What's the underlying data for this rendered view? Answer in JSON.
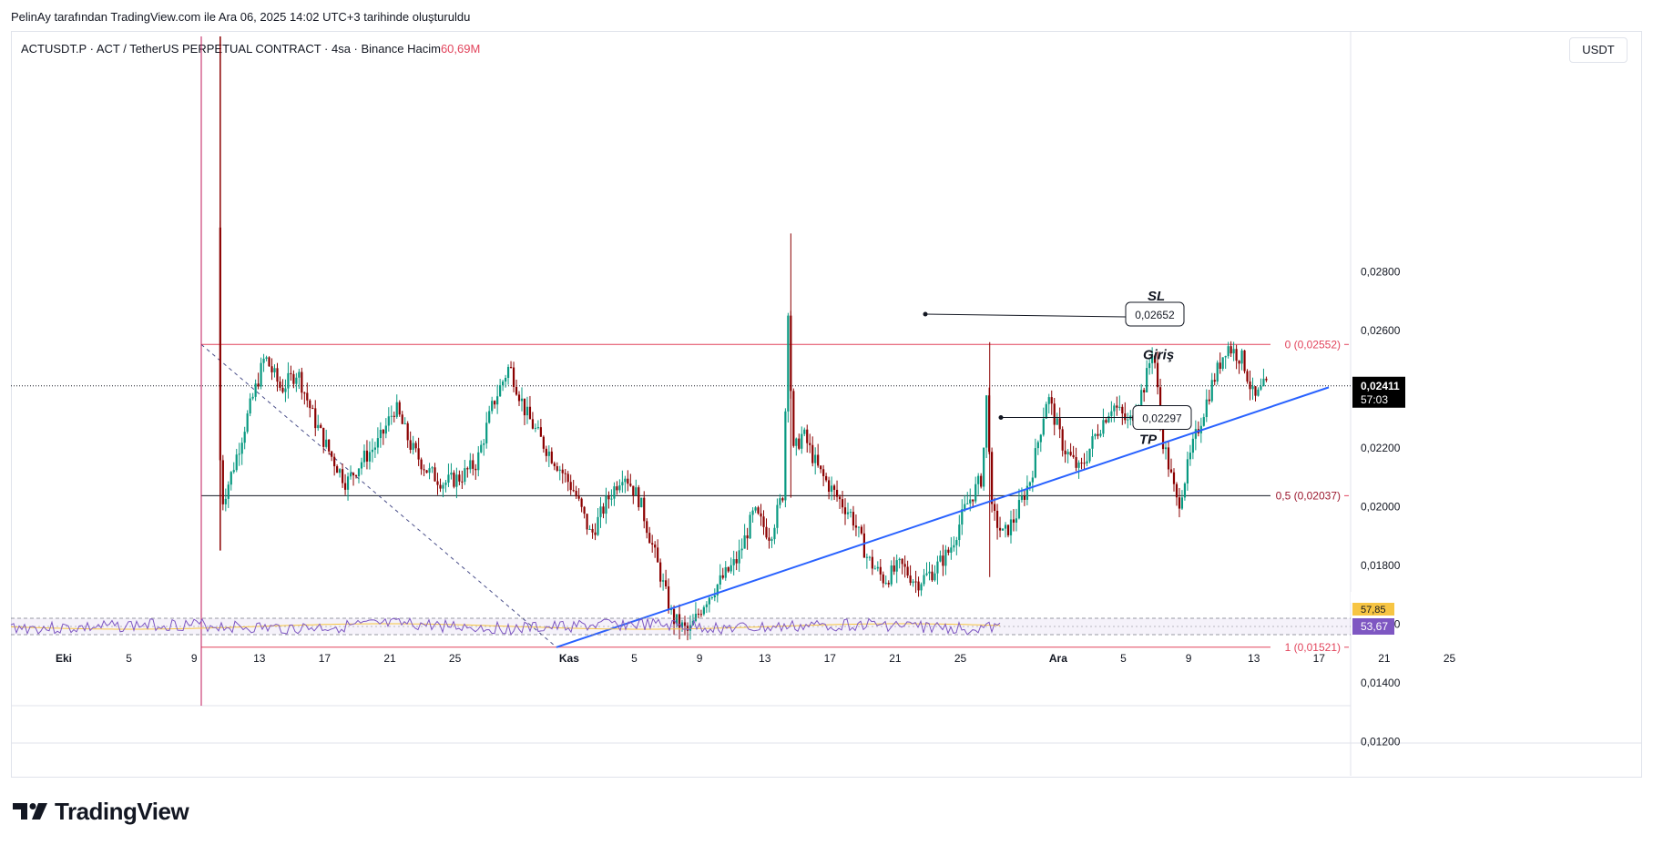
{
  "attribution": "PelinAy tarafından TradingView.com ile Ara 06, 2025 14:02 UTC+3 tarihinde oluşturuldu",
  "header": {
    "symbol": "ACTUSDT.P · ACT / TetherUS PERPETUAL CONTRACT · 4sa · Binance",
    "volume_label": "Hacim",
    "volume_value": "60,69M"
  },
  "currency_badge": "USDT",
  "brand": "TradingView",
  "colors": {
    "up": "#089981",
    "down": "#8b0000",
    "fib": "#e2445c",
    "trendline": "#2962ff",
    "current_price_bg": "#000000",
    "rsi_line": "#7e57c2",
    "rsi_ma": "#f7c543",
    "rsi_badge": "#7e57c2"
  },
  "annotations": {
    "sl_label": "SL",
    "sl_price": "0,02652",
    "tp_label": "TP",
    "tp_price": "0,02297",
    "entry_label": "Giriş"
  },
  "current_price": {
    "value": "0,02411",
    "countdown": "57:03"
  },
  "rsi": {
    "value": "53,67",
    "partial": "57,85"
  },
  "chart_data": {
    "type": "candlestick",
    "title": "ACTUSDT.P · ACT / TetherUS PERPETUAL CONTRACT · 4sa · Binance",
    "ylim": [
      0.0105,
      0.0302
    ],
    "y_ticks": [
      "0,02800",
      "0,02600",
      "0,02400",
      "0,02200",
      "0,02000",
      "0,01800",
      "0,01600",
      "0,01400",
      "0,01200"
    ],
    "y_tick_values": [
      0.028,
      0.026,
      0.024,
      0.022,
      0.02,
      0.018,
      0.016,
      0.014,
      0.012
    ],
    "x_ticks": [
      "Eki",
      "5",
      "9",
      "13",
      "17",
      "21",
      "25",
      "Kas",
      "5",
      "9",
      "13",
      "17",
      "21",
      "25",
      "Ara",
      "5",
      "9",
      "13",
      "17",
      "21",
      "25"
    ],
    "x_tick_days": [
      1,
      5,
      9,
      13,
      17,
      21,
      25,
      32,
      36,
      40,
      44,
      48,
      52,
      56,
      62,
      66,
      70,
      74,
      78,
      82,
      86
    ],
    "x_tick_bold": [
      true,
      false,
      false,
      false,
      false,
      false,
      false,
      true,
      false,
      false,
      false,
      false,
      false,
      false,
      true,
      false,
      false,
      false,
      false,
      false,
      false
    ],
    "fib_levels": [
      {
        "label": "0 (0,02552)",
        "value": 0.02552
      },
      {
        "label": "0,5 (0,02037)",
        "value": 0.02037
      },
      {
        "label": "1 (0,01521)",
        "value": 0.01521
      }
    ],
    "price_anchors_day": [
      [
        10.6,
        0.0295
      ],
      [
        10.8,
        0.02
      ],
      [
        11.5,
        0.0212
      ],
      [
        12.5,
        0.0232
      ],
      [
        13.5,
        0.0251
      ],
      [
        14.5,
        0.024
      ],
      [
        15.5,
        0.0246
      ],
      [
        16.5,
        0.023
      ],
      [
        17.5,
        0.0218
      ],
      [
        18.5,
        0.0208
      ],
      [
        19.5,
        0.0216
      ],
      [
        20.5,
        0.0222
      ],
      [
        21.5,
        0.0234
      ],
      [
        22.5,
        0.022
      ],
      [
        23.5,
        0.0212
      ],
      [
        24.5,
        0.0208
      ],
      [
        25.5,
        0.021
      ],
      [
        26.5,
        0.0215
      ],
      [
        27.5,
        0.0235
      ],
      [
        28.5,
        0.0248
      ],
      [
        29.5,
        0.0232
      ],
      [
        30.5,
        0.0222
      ],
      [
        31.5,
        0.0214
      ],
      [
        32.5,
        0.0205
      ],
      [
        33.5,
        0.019
      ],
      [
        34.5,
        0.0202
      ],
      [
        35.5,
        0.0212
      ],
      [
        36.5,
        0.0202
      ],
      [
        37.5,
        0.0182
      ],
      [
        38.5,
        0.0162
      ],
      [
        39.5,
        0.0157
      ],
      [
        40.5,
        0.0168
      ],
      [
        41.5,
        0.0175
      ],
      [
        42.5,
        0.0182
      ],
      [
        43.5,
        0.0198
      ],
      [
        44.5,
        0.019
      ],
      [
        45.3,
        0.0205
      ],
      [
        45.6,
        0.0268
      ],
      [
        45.9,
        0.0218
      ],
      [
        46.5,
        0.0225
      ],
      [
        47.5,
        0.0212
      ],
      [
        48.5,
        0.0204
      ],
      [
        49.5,
        0.0197
      ],
      [
        50.5,
        0.0182
      ],
      [
        51.5,
        0.0175
      ],
      [
        52.5,
        0.018
      ],
      [
        53.5,
        0.0174
      ],
      [
        54.5,
        0.0178
      ],
      [
        55.5,
        0.0185
      ],
      [
        56.5,
        0.02
      ],
      [
        57.5,
        0.021
      ],
      [
        57.8,
        0.024
      ],
      [
        58.1,
        0.0198
      ],
      [
        58.8,
        0.019
      ],
      [
        59.5,
        0.0196
      ],
      [
        60.5,
        0.021
      ],
      [
        61.5,
        0.0238
      ],
      [
        62.5,
        0.022
      ],
      [
        63.5,
        0.0212
      ],
      [
        64.5,
        0.0225
      ],
      [
        65.5,
        0.0235
      ],
      [
        66.5,
        0.0228
      ],
      [
        67.5,
        0.0242
      ],
      [
        68.0,
        0.0255
      ],
      [
        68.5,
        0.0225
      ],
      [
        69.5,
        0.02
      ],
      [
        70.5,
        0.0222
      ],
      [
        71.5,
        0.024
      ],
      [
        72.5,
        0.0255
      ],
      [
        73.5,
        0.025
      ],
      [
        74.2,
        0.0236
      ],
      [
        74.8,
        0.0241
      ]
    ],
    "annotations": [
      "SL 0,02652",
      "TP 0,02297",
      "Giriş"
    ]
  }
}
